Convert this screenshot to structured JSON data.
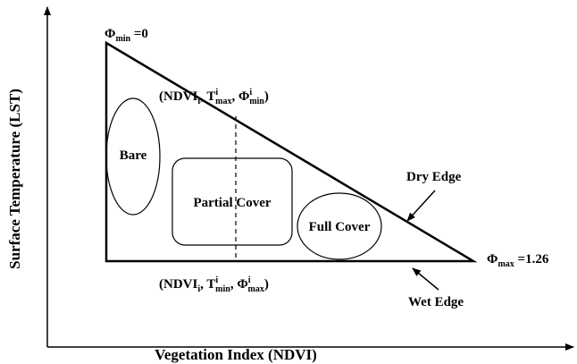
{
  "diagram": {
    "y_axis_label": "Surface Temperature (LST)",
    "x_axis_label": "Vegetation Index (NDVI)",
    "phi_min_label": [
      "Φ",
      "min",
      " =0"
    ],
    "phi_max_label": [
      "Φ",
      "max",
      " =1.26"
    ],
    "top_point_label": [
      "(NDVI",
      "i",
      ", T",
      "i",
      "max",
      ", Φ",
      "i",
      "min",
      ")"
    ],
    "bottom_point_label": [
      "(NDVI",
      "i",
      ", T",
      "i",
      "min",
      ", Φ",
      "i",
      "max",
      ")"
    ],
    "regions": [
      "Bare",
      "Partial Cover",
      "Full Cover"
    ],
    "dry_edge": "Dry Edge",
    "wet_edge": "Wet Edge"
  }
}
